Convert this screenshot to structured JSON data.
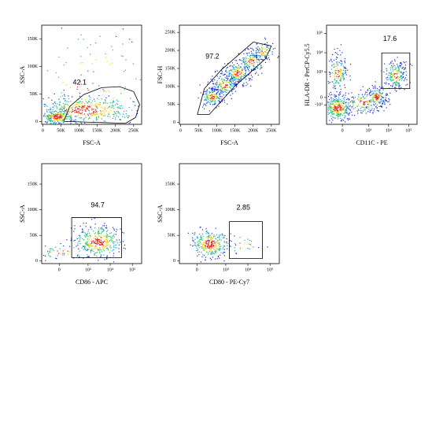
{
  "chart_data": [
    {
      "type": "scatter",
      "x_label": "FSC-A",
      "y_label": "SSC-A",
      "gate_label": "42.1",
      "xlim": [
        -3000,
        272000
      ],
      "ylim": [
        -5000,
        175000
      ],
      "xticks": [
        0,
        {
          "value": 50000,
          "label": "50K"
        },
        {
          "value": 100000,
          "label": "100K"
        },
        {
          "value": 150000,
          "label": "150K"
        },
        {
          "value": 200000,
          "label": "200K"
        },
        {
          "value": 250000,
          "label": "250K"
        }
      ],
      "yticks": [
        0,
        {
          "value": 50000,
          "label": "50K"
        },
        {
          "value": 100000,
          "label": "100K"
        },
        {
          "value": 150000,
          "label": "150K"
        }
      ]
    },
    {
      "type": "scatter",
      "x_label": "FSC-A",
      "y_label": "FSC-H",
      "gate_label": "97.2",
      "xlim": [
        -3000,
        272000
      ],
      "ylim": [
        -5000,
        270000
      ],
      "xticks": [
        0,
        {
          "value": 50000,
          "label": "50K"
        },
        {
          "value": 100000,
          "label": "100K"
        },
        {
          "value": 150000,
          "label": "150K"
        },
        {
          "value": 200000,
          "label": "200K"
        },
        {
          "value": 250000,
          "label": "250K"
        }
      ],
      "yticks": [
        0,
        {
          "value": 50000,
          "label": "50K"
        },
        {
          "value": 100000,
          "label": "100K"
        },
        {
          "value": 150000,
          "label": "150K"
        },
        {
          "value": 200000,
          "label": "200K"
        },
        {
          "value": 250000,
          "label": "250K"
        }
      ]
    },
    {
      "type": "scatter",
      "x_label": "CD11C - PE",
      "y_label": "HLA-DR - PerCP-Cy5.5",
      "gate_label": "17.6",
      "xscale": "biexponential",
      "yscale": "biexponential",
      "xlim": [
        -300,
        262144
      ],
      "ylim": [
        -1200,
        262144
      ],
      "xticks": [
        0,
        {
          "value": 1000,
          "label": "10³"
        },
        {
          "value": 10000,
          "label": "10⁴"
        },
        {
          "value": 100000,
          "label": "10⁵"
        }
      ],
      "yticks": [
        {
          "value": -100,
          "label": "-10²"
        },
        0,
        {
          "value": 1000,
          "label": "10³"
        },
        {
          "value": 10000,
          "label": "10⁴"
        },
        {
          "value": 100000,
          "label": "10⁵"
        }
      ]
    },
    {
      "type": "scatter",
      "x_label": "CD86 - APC",
      "y_label": "SSC-A",
      "gate_label": "94.7",
      "xscale": "biexponential",
      "xlim": [
        -300,
        262144
      ],
      "ylim": [
        -5000,
        190000
      ],
      "xticks": [
        0,
        {
          "value": 1000,
          "label": "10³"
        },
        {
          "value": 10000,
          "label": "10⁴"
        },
        {
          "value": 100000,
          "label": "10⁵"
        }
      ],
      "yticks": [
        0,
        {
          "value": 50000,
          "label": "50K"
        },
        {
          "value": 100000,
          "label": "100K"
        },
        {
          "value": 150000,
          "label": "150K"
        }
      ]
    },
    {
      "type": "scatter",
      "x_label": "CD80 - PE-Cy7",
      "y_label": "SSC-A",
      "gate_label": "2.85",
      "xscale": "biexponential",
      "xlim": [
        -300,
        262144
      ],
      "ylim": [
        -5000,
        190000
      ],
      "xticks": [
        0,
        {
          "value": 1000,
          "label": "10³"
        },
        {
          "value": 10000,
          "label": "10⁴"
        },
        {
          "value": 100000,
          "label": "10⁵"
        }
      ],
      "yticks": [
        0,
        {
          "value": 50000,
          "label": "50K"
        },
        {
          "value": 100000,
          "label": "100K"
        },
        {
          "value": 150000,
          "label": "150K"
        }
      ]
    }
  ]
}
